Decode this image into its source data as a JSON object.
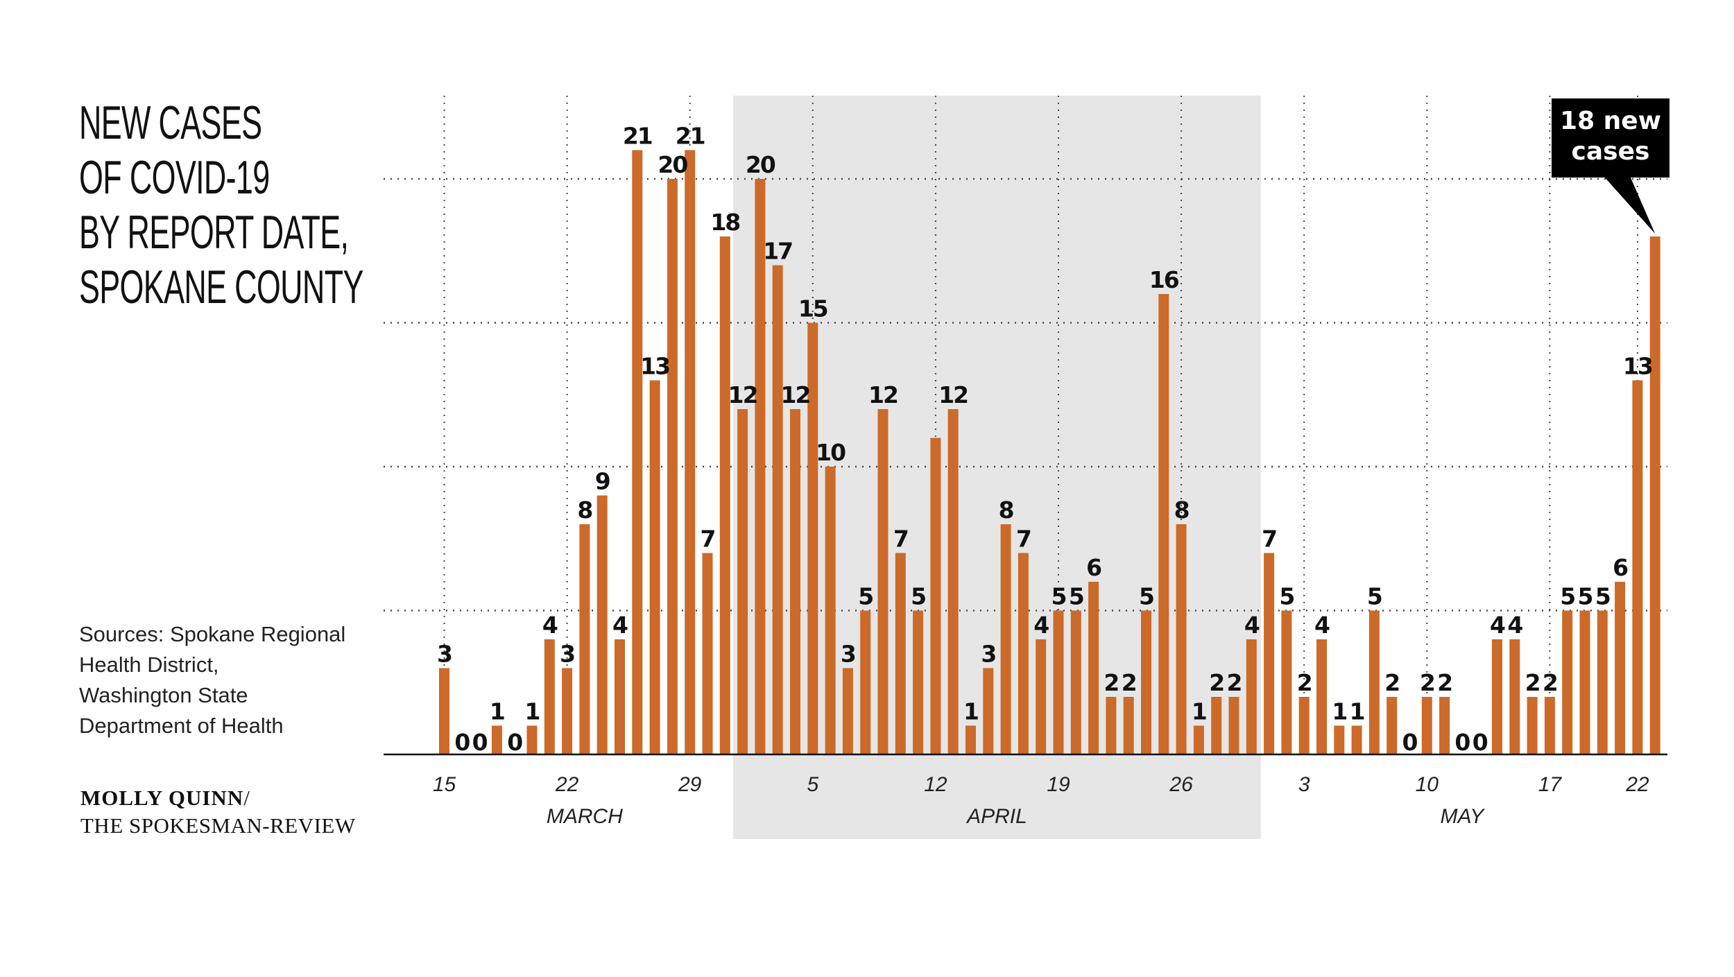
{
  "title_lines": [
    "NEW CASES",
    "OF COVID-19",
    "BY REPORT DATE,",
    "SPOKANE COUNTY"
  ],
  "sources_lines": [
    "Sources: Spokane Regional",
    "Health District,",
    "Washington State",
    "Department of Health"
  ],
  "credit": {
    "name": "MOLLY QUINN",
    "slash": "/",
    "organization": "THE SPOKESMAN-REVIEW"
  },
  "colors": {
    "bar": "#cc6a2a",
    "shade": "#e6e6e6",
    "callout_bg": "#000000",
    "callout_text": "#ffffff"
  },
  "chart_data": {
    "type": "bar",
    "title": "NEW CASES OF COVID-19 BY REPORT DATE, SPOKANE COUNTY",
    "x_start_date": "2020-03-15",
    "ylim": [
      0,
      21
    ],
    "gridlines_y": [
      5,
      10,
      15,
      20
    ],
    "values": [
      3,
      0,
      0,
      1,
      0,
      1,
      4,
      3,
      8,
      9,
      4,
      21,
      13,
      20,
      21,
      7,
      18,
      12,
      20,
      17,
      12,
      15,
      10,
      3,
      5,
      12,
      7,
      5,
      11,
      12,
      1,
      3,
      8,
      7,
      4,
      5,
      5,
      6,
      2,
      2,
      5,
      16,
      8,
      1,
      2,
      2,
      4,
      7,
      5,
      2,
      4,
      1,
      1,
      5,
      2,
      0,
      2,
      2,
      0,
      0,
      4,
      4,
      2,
      2,
      5,
      5,
      5,
      6,
      13,
      18
    ],
    "value_labels": [
      "3",
      "0",
      "0",
      "1",
      "0",
      "1",
      "4",
      "3",
      "8",
      "9",
      "4",
      "21",
      "13",
      "20",
      "21",
      "7",
      "18",
      "12",
      "20",
      "17",
      "12",
      "15",
      "10",
      "3",
      "5",
      "12",
      "7",
      "5",
      "",
      "12",
      "1",
      "3",
      "8",
      "7",
      "4",
      "5",
      "5",
      "6",
      "2",
      "2",
      "5",
      "16",
      "8",
      "1",
      "2",
      "2",
      "4",
      "7",
      "5",
      "2",
      "4",
      "1",
      "1",
      "5",
      "2",
      "0",
      "2",
      "2",
      "0",
      "0",
      "4",
      "4",
      "2",
      "2",
      "5",
      "5",
      "5",
      "6",
      "13",
      ""
    ],
    "tick_labels": [
      {
        "index": 0,
        "label": "15"
      },
      {
        "index": 7,
        "label": "22"
      },
      {
        "index": 14,
        "label": "29"
      },
      {
        "index": 21,
        "label": "5"
      },
      {
        "index": 28,
        "label": "12"
      },
      {
        "index": 35,
        "label": "19"
      },
      {
        "index": 42,
        "label": "26"
      },
      {
        "index": 49,
        "label": "3"
      },
      {
        "index": 56,
        "label": "10"
      },
      {
        "index": 63,
        "label": "17"
      },
      {
        "index": 68,
        "label": "22"
      }
    ],
    "months": [
      {
        "label": "MARCH",
        "start": 0,
        "end": 16,
        "shaded": false
      },
      {
        "label": "APRIL",
        "start": 17,
        "end": 46,
        "shaded": true
      },
      {
        "label": "MAY",
        "start": 47,
        "end": 69,
        "shaded": false
      }
    ],
    "callout": {
      "index": 69,
      "lines": [
        "18 new",
        "cases"
      ]
    }
  }
}
